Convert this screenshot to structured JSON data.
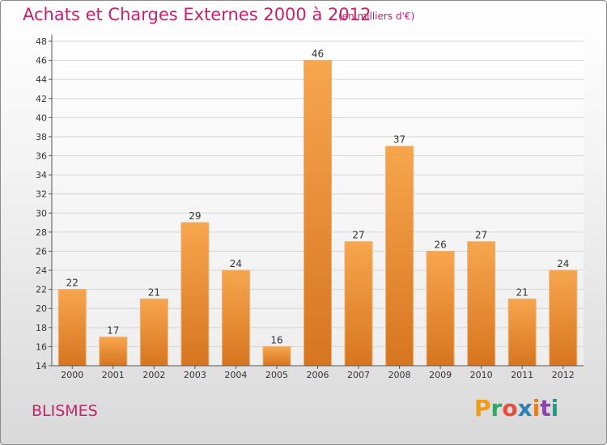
{
  "title": "Achats et Charges Externes 2000 à 2012",
  "subtitle": "(en milliers d'€)",
  "commune": "BLISMES",
  "logo": {
    "text": "Proxiti",
    "colors": [
      "#f39c12",
      "#27ae60",
      "#e74c3c",
      "#2980b9",
      "#e67e22",
      "#8e44ad",
      "#16a085"
    ]
  },
  "colors": {
    "bar_top": "#f7a64e",
    "bar_bottom": "#d77520",
    "accent": "#c4236c",
    "grid": "#d4d4d4"
  },
  "chart_data": {
    "type": "bar",
    "title": "Achats et Charges Externes 2000 à 2012",
    "subtitle": "(en milliers d'€)",
    "categories": [
      "2000",
      "2001",
      "2002",
      "2003",
      "2004",
      "2005",
      "2006",
      "2007",
      "2008",
      "2009",
      "2010",
      "2011",
      "2012"
    ],
    "values": [
      22,
      17,
      21,
      29,
      24,
      16,
      46,
      27,
      37,
      26,
      27,
      21,
      24
    ],
    "ylim": [
      14,
      48
    ],
    "ytick_step": 2,
    "yticks": [
      "14",
      "16",
      "18",
      "20",
      "22",
      "24",
      "26",
      "28",
      "30",
      "32",
      "34",
      "36",
      "38",
      "40",
      "42",
      "44",
      "46",
      "48"
    ],
    "grid": true,
    "data_labels": true
  }
}
